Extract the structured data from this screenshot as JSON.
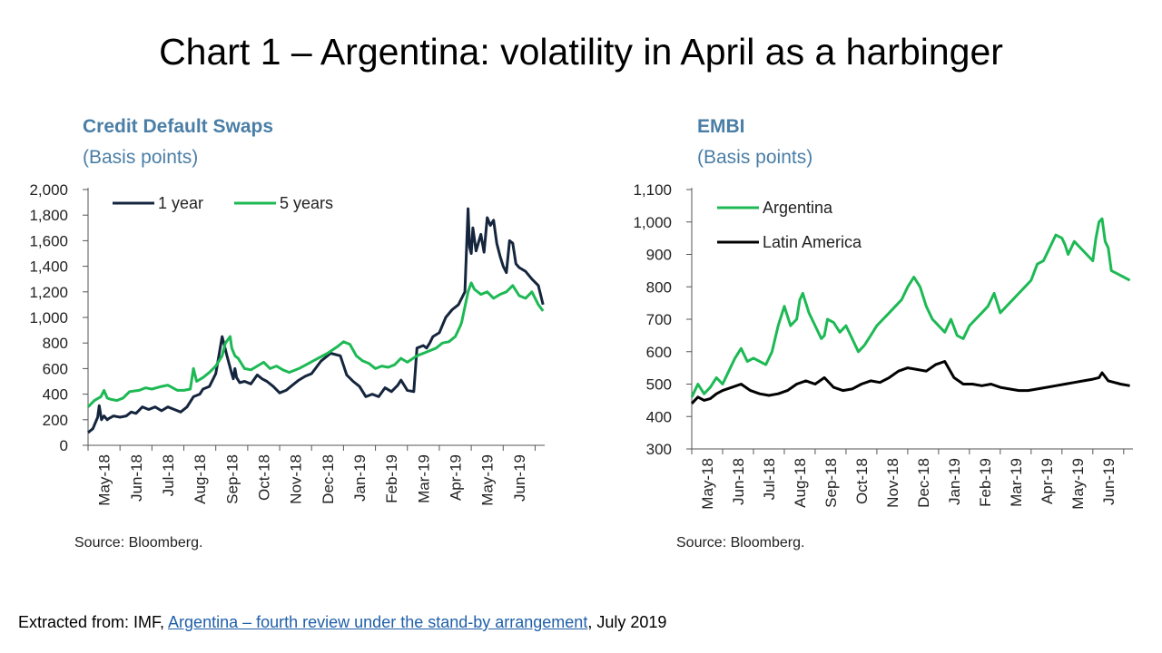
{
  "title": "Chart 1 – Argentina: volatility in April as a harbinger",
  "footer": {
    "prefix": "Extracted from: IMF, ",
    "link": "Argentina – fourth review under the stand-by arrangement",
    "suffix": ", July 2019"
  },
  "colors": {
    "dark_navy": "#14253d",
    "green": "#1db954",
    "black": "#000000",
    "title_blue": "#4a7ea6"
  },
  "chart_data": [
    {
      "type": "line",
      "title": "Credit Default Swaps",
      "subtitle": "(Basis points)",
      "source": "Source: Bloomberg.",
      "ylim": [
        0,
        2000
      ],
      "yticks": [
        0,
        200,
        400,
        600,
        800,
        1000,
        1200,
        1400,
        1600,
        1800,
        2000
      ],
      "ytick_labels": [
        "0",
        "200",
        "400",
        "600",
        "800",
        "1,000",
        "1,200",
        "1,400",
        "1,600",
        "1,800",
        "2,000"
      ],
      "x_range": [
        0,
        14.3
      ],
      "x_tick_positions": [
        0,
        1,
        2,
        3,
        4,
        5,
        6,
        7,
        8,
        9,
        10,
        11,
        12,
        13,
        14
      ],
      "categories": [
        "May-18",
        "Jun-18",
        "Jul-18",
        "Aug-18",
        "Sep-18",
        "Oct-18",
        "Nov-18",
        "Dec-18",
        "Jan-19",
        "Feb-19",
        "Mar-19",
        "Apr-19",
        "May-19",
        "Jun-19"
      ],
      "label_positions": [
        0.5,
        1.5,
        2.5,
        3.5,
        4.5,
        5.5,
        6.5,
        7.5,
        8.5,
        9.5,
        10.5,
        11.5,
        12.5,
        13.5
      ],
      "legend": "top-left",
      "series": [
        {
          "name": "1 year",
          "color": "#14253d",
          "x": [
            0,
            0.15,
            0.3,
            0.35,
            0.42,
            0.5,
            0.6,
            0.65,
            0.8,
            1.0,
            1.2,
            1.35,
            1.5,
            1.7,
            1.9,
            2.1,
            2.3,
            2.5,
            2.7,
            2.9,
            3.1,
            3.3,
            3.5,
            3.6,
            3.8,
            4.0,
            4.2,
            4.35,
            4.5,
            4.55,
            4.6,
            4.65,
            4.75,
            4.9,
            5.1,
            5.3,
            5.45,
            5.6,
            5.8,
            6.0,
            6.2,
            6.4,
            6.6,
            6.8,
            7.0,
            7.3,
            7.6,
            7.9,
            8.1,
            8.3,
            8.5,
            8.7,
            8.9,
            9.1,
            9.3,
            9.5,
            9.7,
            9.8,
            10.0,
            10.2,
            10.3,
            10.5,
            10.6,
            10.7,
            10.8,
            11.0,
            11.2,
            11.4,
            11.6,
            11.8,
            11.9,
            11.95,
            12.0,
            12.05,
            12.15,
            12.3,
            12.4,
            12.5,
            12.6,
            12.7,
            12.8,
            12.9,
            13.0,
            13.1,
            13.2,
            13.3,
            13.4,
            13.5,
            13.7,
            13.9,
            14.1,
            14.25
          ],
          "values": [
            100,
            130,
            220,
            310,
            200,
            230,
            200,
            210,
            230,
            220,
            230,
            260,
            250,
            300,
            280,
            300,
            270,
            300,
            280,
            260,
            300,
            380,
            400,
            440,
            460,
            560,
            850,
            700,
            560,
            520,
            600,
            530,
            490,
            500,
            480,
            550,
            520,
            500,
            460,
            410,
            430,
            470,
            510,
            540,
            560,
            660,
            720,
            700,
            550,
            500,
            460,
            380,
            400,
            380,
            450,
            420,
            470,
            510,
            430,
            420,
            760,
            780,
            760,
            800,
            850,
            880,
            1000,
            1060,
            1100,
            1200,
            1850,
            1550,
            1500,
            1700,
            1520,
            1650,
            1510,
            1780,
            1720,
            1760,
            1580,
            1480,
            1400,
            1350,
            1600,
            1580,
            1420,
            1390,
            1360,
            1300,
            1250,
            1100
          ]
        },
        {
          "name": "5 years",
          "color": "#1db954",
          "x": [
            0,
            0.2,
            0.4,
            0.5,
            0.6,
            0.7,
            0.9,
            1.1,
            1.3,
            1.6,
            1.8,
            2.0,
            2.3,
            2.5,
            2.8,
            3.0,
            3.2,
            3.3,
            3.4,
            3.6,
            3.8,
            4.0,
            4.2,
            4.3,
            4.45,
            4.5,
            4.6,
            4.7,
            4.9,
            5.1,
            5.3,
            5.5,
            5.7,
            5.9,
            6.1,
            6.3,
            6.6,
            6.9,
            7.2,
            7.5,
            7.8,
            8.0,
            8.2,
            8.4,
            8.6,
            8.8,
            9.0,
            9.2,
            9.4,
            9.6,
            9.8,
            10.0,
            10.3,
            10.6,
            10.9,
            11.1,
            11.3,
            11.5,
            11.65,
            11.7,
            11.9,
            12.0,
            12.1,
            12.3,
            12.5,
            12.7,
            12.9,
            13.1,
            13.3,
            13.5,
            13.7,
            13.9,
            14.1,
            14.25
          ],
          "values": [
            300,
            350,
            380,
            430,
            370,
            360,
            350,
            370,
            420,
            430,
            450,
            440,
            460,
            470,
            430,
            430,
            440,
            600,
            500,
            530,
            570,
            620,
            700,
            800,
            850,
            760,
            700,
            680,
            600,
            590,
            620,
            650,
            600,
            620,
            590,
            570,
            600,
            640,
            680,
            720,
            770,
            810,
            790,
            700,
            660,
            640,
            600,
            620,
            610,
            630,
            680,
            650,
            700,
            730,
            760,
            800,
            810,
            850,
            930,
            960,
            1200,
            1270,
            1220,
            1180,
            1200,
            1150,
            1180,
            1200,
            1250,
            1170,
            1150,
            1200,
            1100,
            1050
          ]
        }
      ]
    },
    {
      "type": "line",
      "title": "EMBI",
      "subtitle": "(Basis points)",
      "source": "Source: Bloomberg.",
      "ylim": [
        300,
        1100
      ],
      "yticks": [
        300,
        400,
        500,
        600,
        700,
        800,
        900,
        1000,
        1100
      ],
      "ytick_labels": [
        "300",
        "400",
        "500",
        "600",
        "700",
        "800",
        "900",
        "1,000",
        "1,100"
      ],
      "x_range": [
        0,
        14.3
      ],
      "x_tick_positions": [
        0,
        1,
        2,
        3,
        4,
        5,
        6,
        7,
        8,
        9,
        10,
        11,
        12,
        13,
        14
      ],
      "categories": [
        "May-18",
        "Jun-18",
        "Jul-18",
        "Aug-18",
        "Sep-18",
        "Oct-18",
        "Nov-18",
        "Dec-18",
        "Jan-19",
        "Feb-19",
        "Mar-19",
        "Apr-19",
        "May-19",
        "Jun-19"
      ],
      "label_positions": [
        0.5,
        1.5,
        2.5,
        3.5,
        4.5,
        5.5,
        6.5,
        7.5,
        8.5,
        9.5,
        10.5,
        11.5,
        12.5,
        13.5
      ],
      "legend": "top-left",
      "series": [
        {
          "name": "Argentina",
          "color": "#1db954",
          "x": [
            0,
            0.2,
            0.4,
            0.6,
            0.8,
            1.0,
            1.2,
            1.4,
            1.6,
            1.8,
            2.0,
            2.2,
            2.4,
            2.6,
            2.8,
            3.0,
            3.2,
            3.4,
            3.5,
            3.6,
            3.8,
            4.0,
            4.2,
            4.3,
            4.4,
            4.6,
            4.8,
            5.0,
            5.2,
            5.4,
            5.6,
            5.8,
            6.0,
            6.2,
            6.4,
            6.6,
            6.8,
            7.0,
            7.2,
            7.4,
            7.6,
            7.8,
            8.0,
            8.2,
            8.4,
            8.6,
            8.8,
            9.0,
            9.2,
            9.4,
            9.6,
            9.8,
            10.0,
            10.2,
            10.4,
            10.6,
            10.8,
            11.0,
            11.2,
            11.4,
            11.6,
            11.8,
            12.0,
            12.1,
            12.2,
            12.4,
            12.6,
            12.8,
            13.0,
            13.1,
            13.2,
            13.3,
            13.4,
            13.5,
            13.6,
            13.8,
            14.0,
            14.2
          ],
          "values": [
            460,
            500,
            470,
            490,
            520,
            500,
            540,
            580,
            610,
            570,
            580,
            570,
            560,
            600,
            680,
            740,
            680,
            700,
            760,
            780,
            720,
            680,
            640,
            650,
            700,
            690,
            660,
            680,
            640,
            600,
            620,
            650,
            680,
            700,
            720,
            740,
            760,
            800,
            830,
            800,
            740,
            700,
            680,
            660,
            700,
            650,
            640,
            680,
            700,
            720,
            740,
            780,
            720,
            740,
            760,
            780,
            800,
            820,
            870,
            880,
            920,
            960,
            950,
            930,
            900,
            940,
            920,
            900,
            880,
            950,
            1000,
            1010,
            940,
            920,
            850,
            840,
            830,
            820
          ]
        },
        {
          "name": "Latin America",
          "color": "#000000",
          "x": [
            0,
            0.2,
            0.4,
            0.6,
            0.8,
            1.0,
            1.3,
            1.6,
            1.9,
            2.2,
            2.5,
            2.8,
            3.1,
            3.4,
            3.7,
            4.0,
            4.3,
            4.6,
            4.9,
            5.2,
            5.5,
            5.8,
            6.1,
            6.4,
            6.7,
            7.0,
            7.3,
            7.6,
            7.9,
            8.2,
            8.5,
            8.8,
            9.1,
            9.4,
            9.7,
            10.0,
            10.3,
            10.6,
            10.9,
            11.2,
            11.5,
            11.8,
            12.1,
            12.4,
            12.7,
            13.0,
            13.2,
            13.3,
            13.5,
            13.7,
            13.9,
            14.2
          ],
          "values": [
            440,
            460,
            450,
            455,
            470,
            480,
            490,
            500,
            480,
            470,
            465,
            470,
            480,
            500,
            510,
            500,
            520,
            490,
            480,
            485,
            500,
            510,
            505,
            520,
            540,
            550,
            545,
            540,
            560,
            570,
            520,
            500,
            500,
            495,
            500,
            490,
            485,
            480,
            480,
            485,
            490,
            495,
            500,
            505,
            510,
            515,
            520,
            535,
            510,
            505,
            500,
            495
          ]
        }
      ]
    }
  ]
}
